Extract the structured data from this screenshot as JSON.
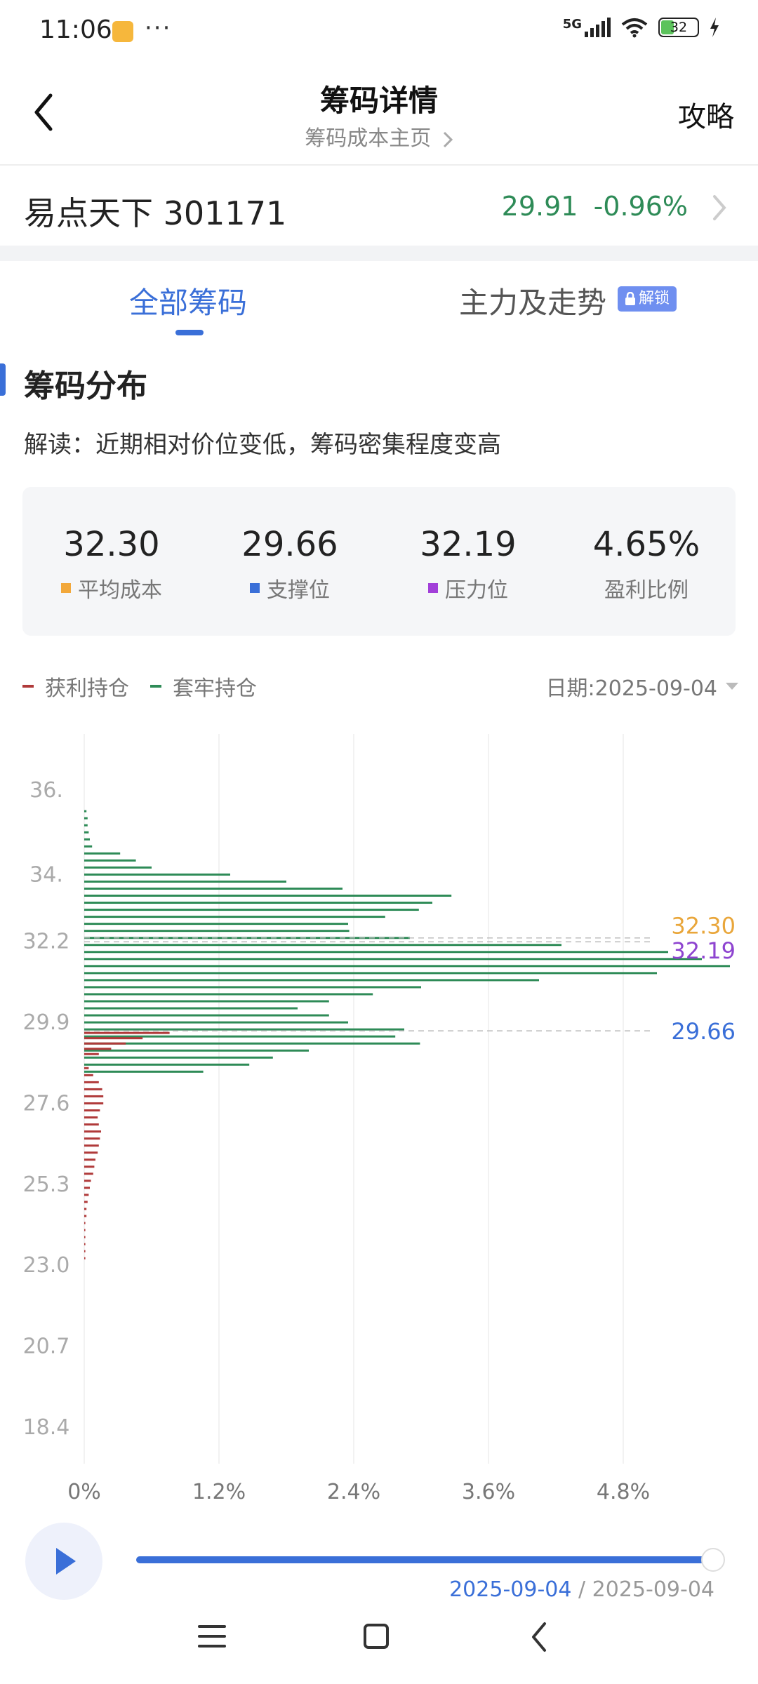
{
  "status_bar": {
    "time": "11:06",
    "dots": "···",
    "network": "5G",
    "battery": "32",
    "icons": [
      "app-notification-icon",
      "signal-icon",
      "wifi-icon",
      "battery-icon",
      "charging-icon"
    ]
  },
  "header": {
    "title": "筹码详情",
    "subtitle": "筹码成本主页",
    "right_label": "攻略"
  },
  "stock": {
    "name": "易点天下 301171",
    "price": "29.91",
    "change": "-0.96%",
    "price_color": "#2e8b57"
  },
  "tabs": [
    {
      "label": "全部筹码",
      "active": true
    },
    {
      "label": "主力及走势",
      "active": false,
      "badge": "解锁"
    }
  ],
  "section": {
    "title": "筹码分布",
    "interpretation": "解读：近期相对价位变低，筹码密集程度变高"
  },
  "stats": [
    {
      "value": "32.30",
      "label": "平均成本",
      "color": "#f2a83b"
    },
    {
      "value": "29.66",
      "label": "支撑位",
      "color": "#3a6fd8"
    },
    {
      "value": "32.19",
      "label": "压力位",
      "color": "#a23fd9"
    },
    {
      "value": "4.65%",
      "label": "盈利比例",
      "color": ""
    }
  ],
  "legend": {
    "profit": "获利持仓",
    "trapped": "套牢持仓",
    "profit_color": "#b03a3a",
    "trapped_color": "#2e8b57",
    "date_label": "日期:2025-09-04"
  },
  "chart_data": {
    "type": "bar",
    "orientation": "horizontal",
    "y_ticks": [
      "36.",
      "34.",
      "32.2",
      "29.9",
      "27.6",
      "25.3",
      "23.0",
      "20.7",
      "18.4"
    ],
    "y_tick_values": [
      36.5,
      34.1,
      32.2,
      29.9,
      27.6,
      25.3,
      23.0,
      20.7,
      18.4
    ],
    "x_ticks": [
      "0%",
      "1.2%",
      "2.4%",
      "3.6%",
      "4.8%"
    ],
    "xlim": [
      0,
      6.0
    ],
    "markers": [
      {
        "label": "32.30",
        "value": 32.3,
        "color": "#e9a63a"
      },
      {
        "label": "32.19",
        "value": 32.19,
        "color": "#8e44d0"
      },
      {
        "label": "29.66",
        "value": 29.66,
        "color": "#3a6fd8"
      }
    ],
    "series": [
      {
        "name": "套牢持仓",
        "color": "#2e8b57",
        "bars": [
          [
            35.9,
            0.02
          ],
          [
            35.7,
            0.03
          ],
          [
            35.5,
            0.03
          ],
          [
            35.3,
            0.04
          ],
          [
            35.1,
            0.05
          ],
          [
            34.9,
            0.07
          ],
          [
            34.7,
            0.32
          ],
          [
            34.5,
            0.46
          ],
          [
            34.3,
            0.6
          ],
          [
            34.1,
            1.3
          ],
          [
            33.9,
            1.8
          ],
          [
            33.7,
            2.3
          ],
          [
            33.5,
            3.27
          ],
          [
            33.3,
            3.1
          ],
          [
            33.1,
            2.98
          ],
          [
            32.9,
            2.68
          ],
          [
            32.7,
            2.35
          ],
          [
            32.5,
            2.36
          ],
          [
            32.3,
            2.9
          ],
          [
            32.1,
            4.25
          ],
          [
            31.9,
            5.2
          ],
          [
            31.7,
            5.5
          ],
          [
            31.5,
            5.75
          ],
          [
            31.3,
            5.1
          ],
          [
            31.1,
            4.05
          ],
          [
            30.9,
            3.0
          ],
          [
            30.7,
            2.57
          ],
          [
            30.5,
            2.18
          ],
          [
            30.3,
            1.9
          ],
          [
            30.1,
            2.18
          ],
          [
            29.9,
            2.35
          ],
          [
            29.7,
            2.85
          ],
          [
            29.5,
            2.77
          ],
          [
            29.3,
            2.99
          ],
          [
            29.1,
            2.0
          ],
          [
            28.9,
            1.68
          ],
          [
            28.7,
            1.47
          ],
          [
            28.5,
            1.06
          ]
        ]
      },
      {
        "name": "获利持仓",
        "color": "#b03a3a",
        "bars": [
          [
            29.6,
            0.76
          ],
          [
            29.45,
            0.52
          ],
          [
            29.3,
            0.37
          ],
          [
            29.15,
            0.24
          ],
          [
            29.0,
            0.13
          ],
          [
            28.6,
            0.04
          ],
          [
            28.4,
            0.08
          ],
          [
            28.2,
            0.13
          ],
          [
            28.0,
            0.16
          ],
          [
            27.8,
            0.17
          ],
          [
            27.6,
            0.17
          ],
          [
            27.4,
            0.14
          ],
          [
            27.2,
            0.12
          ],
          [
            27.0,
            0.13
          ],
          [
            26.8,
            0.15
          ],
          [
            26.6,
            0.14
          ],
          [
            26.4,
            0.13
          ],
          [
            26.2,
            0.12
          ],
          [
            26.0,
            0.1
          ],
          [
            25.8,
            0.09
          ],
          [
            25.6,
            0.08
          ],
          [
            25.4,
            0.06
          ],
          [
            25.2,
            0.05
          ],
          [
            25.0,
            0.04
          ],
          [
            24.8,
            0.03
          ],
          [
            24.6,
            0.02
          ],
          [
            24.4,
            0.02
          ],
          [
            24.2,
            0.01
          ],
          [
            24.0,
            0.01
          ],
          [
            23.8,
            0.01
          ],
          [
            23.6,
            0.01
          ],
          [
            23.4,
            0.01
          ],
          [
            23.2,
            0.01
          ]
        ]
      }
    ]
  },
  "player": {
    "current_date": "2025-09-04",
    "separator": " / ",
    "end_date": "2025-09-04",
    "progress": 1.0
  }
}
